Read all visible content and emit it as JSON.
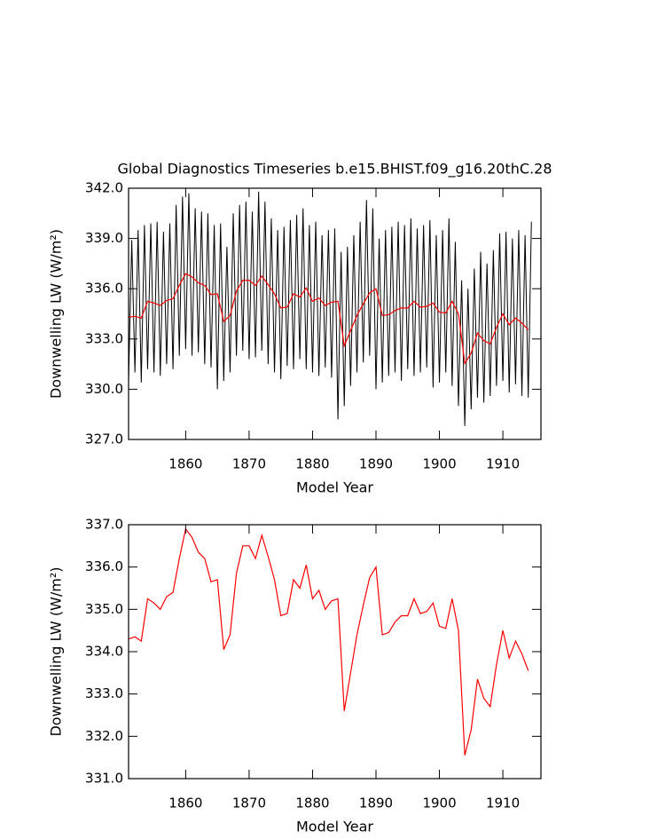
{
  "chart_data": [
    {
      "type": "line",
      "title": "Global Diagnostics Timeseries b.e15.BHIST.f09_g16.20thC.28",
      "xlabel": "Model Year",
      "ylabel": "Downwelling LW (W/m²)",
      "xlim": [
        1851,
        1916
      ],
      "xticks": [
        1860,
        1870,
        1880,
        1890,
        1900,
        1910
      ],
      "ylim": [
        327,
        342
      ],
      "yticks": [
        {
          "value": 327,
          "label": "327.0"
        },
        {
          "value": 330,
          "label": "330.0"
        },
        {
          "value": 333,
          "label": "333.0"
        },
        {
          "value": 336,
          "label": "336.0"
        },
        {
          "value": 339,
          "label": "339.0"
        },
        {
          "value": 342,
          "label": "342.0"
        }
      ],
      "series": [
        {
          "color": "#000000",
          "x": [
            1851,
            1851.5,
            1852,
            1852.5,
            1853,
            1853.5,
            1854,
            1854.5,
            1855,
            1855.5,
            1856,
            1856.5,
            1857,
            1857.5,
            1858,
            1858.5,
            1859,
            1859.5,
            1860,
            1860.5,
            1861,
            1861.5,
            1862,
            1862.5,
            1863,
            1863.5,
            1864,
            1864.5,
            1865,
            1865.5,
            1866,
            1866.5,
            1867,
            1867.5,
            1868,
            1868.5,
            1869,
            1869.5,
            1870,
            1870.5,
            1871,
            1871.5,
            1872,
            1872.5,
            1873,
            1873.5,
            1874,
            1874.5,
            1875,
            1875.5,
            1876,
            1876.5,
            1877,
            1877.5,
            1878,
            1878.5,
            1879,
            1879.5,
            1880,
            1880.5,
            1881,
            1881.5,
            1882,
            1882.5,
            1883,
            1883.5,
            1884,
            1884.5,
            1885,
            1885.5,
            1886,
            1886.5,
            1887,
            1887.5,
            1888,
            1888.5,
            1889,
            1889.5,
            1890,
            1890.5,
            1891,
            1891.5,
            1892,
            1892.5,
            1893,
            1893.5,
            1894,
            1894.5,
            1895,
            1895.5,
            1896,
            1896.5,
            1897,
            1897.5,
            1898,
            1898.5,
            1899,
            1899.5,
            1900,
            1900.5,
            1901,
            1901.5,
            1902,
            1902.5,
            1903,
            1903.5,
            1904,
            1904.5,
            1905,
            1905.5,
            1906,
            1906.5,
            1907,
            1907.5,
            1908,
            1908.5,
            1909,
            1909.5,
            1910,
            1910.5,
            1911,
            1911.5,
            1912,
            1912.5,
            1913,
            1913.5,
            1914,
            1914.5
          ],
          "values": [
            330.5,
            338.9,
            331.0,
            339.5,
            330.4,
            339.8,
            331.2,
            339.9,
            331.0,
            340.0,
            330.8,
            339.4,
            331.5,
            339.9,
            331.2,
            341.0,
            332.0,
            341.5,
            332.4,
            341.7,
            332.0,
            340.8,
            332.2,
            340.6,
            331.5,
            340.5,
            331.3,
            339.8,
            330.0,
            339.9,
            330.5,
            338.5,
            331.0,
            340.5,
            332.0,
            341.0,
            332.3,
            341.2,
            331.8,
            340.6,
            331.9,
            341.8,
            332.3,
            341.2,
            331.5,
            340.2,
            331.0,
            339.5,
            330.6,
            339.7,
            331.4,
            340.1,
            331.2,
            340.4,
            331.8,
            340.8,
            331.2,
            339.8,
            331.0,
            340.0,
            330.8,
            339.2,
            331.3,
            339.5,
            330.7,
            339.6,
            328.2,
            338.2,
            329.0,
            338.5,
            330.2,
            339.2,
            331.0,
            340.0,
            331.6,
            341.3,
            332.0,
            340.8,
            330.0,
            339.0,
            330.4,
            339.5,
            330.8,
            339.7,
            331.0,
            340.0,
            330.5,
            339.8,
            331.2,
            340.2,
            330.8,
            339.6,
            331.0,
            339.8,
            331.3,
            340.1,
            330.1,
            339.2,
            330.4,
            339.5,
            331.0,
            340.2,
            330.2,
            338.8,
            329.0,
            336.5,
            327.8,
            336.0,
            328.8,
            337.2,
            329.5,
            338.2,
            329.2,
            337.5,
            329.6,
            338.3,
            330.2,
            339.3,
            330.5,
            339.4,
            329.8,
            339.0,
            330.3,
            339.5,
            329.6,
            339.2,
            329.5,
            340.0
          ]
        },
        {
          "color": "#ff0000",
          "x": [
            1851,
            1852,
            1853,
            1854,
            1855,
            1856,
            1857,
            1858,
            1859,
            1860,
            1861,
            1862,
            1863,
            1864,
            1865,
            1866,
            1867,
            1868,
            1869,
            1870,
            1871,
            1872,
            1873,
            1874,
            1875,
            1876,
            1877,
            1878,
            1879,
            1880,
            1881,
            1882,
            1883,
            1884,
            1885,
            1886,
            1887,
            1888,
            1889,
            1890,
            1891,
            1892,
            1893,
            1894,
            1895,
            1896,
            1897,
            1898,
            1899,
            1900,
            1901,
            1902,
            1903,
            1904,
            1905,
            1906,
            1907,
            1908,
            1909,
            1910,
            1911,
            1912,
            1913,
            1914
          ],
          "values": [
            334.3,
            334.35,
            334.25,
            335.25,
            335.15,
            335.0,
            335.3,
            335.4,
            336.2,
            336.9,
            336.7,
            336.35,
            336.2,
            335.65,
            335.7,
            334.05,
            334.4,
            335.85,
            336.5,
            336.5,
            336.2,
            336.75,
            336.25,
            335.7,
            334.85,
            334.9,
            335.7,
            335.5,
            336.05,
            335.25,
            335.45,
            335.0,
            335.2,
            335.25,
            332.6,
            333.5,
            334.4,
            335.1,
            335.75,
            336.0,
            334.4,
            334.45,
            334.7,
            334.85,
            334.85,
            335.25,
            334.9,
            334.95,
            335.15,
            334.6,
            334.55,
            335.25,
            334.5,
            331.55,
            332.15,
            333.35,
            332.9,
            332.7,
            333.7,
            334.5,
            333.85,
            334.25,
            333.95,
            333.55
          ]
        }
      ]
    },
    {
      "type": "line",
      "xlabel": "Model Year",
      "ylabel": "Downwelling LW (W/m²)",
      "xlim": [
        1851,
        1916
      ],
      "xticks": [
        1860,
        1870,
        1880,
        1890,
        1900,
        1910
      ],
      "ylim": [
        331,
        337
      ],
      "yticks": [
        {
          "value": 331,
          "label": "331.0"
        },
        {
          "value": 332,
          "label": "332.0"
        },
        {
          "value": 333,
          "label": "333.0"
        },
        {
          "value": 334,
          "label": "334.0"
        },
        {
          "value": 335,
          "label": "335.0"
        },
        {
          "value": 336,
          "label": "336.0"
        },
        {
          "value": 337,
          "label": "337.0"
        }
      ],
      "series": [
        {
          "color": "#ff0000",
          "x": [
            1851,
            1852,
            1853,
            1854,
            1855,
            1856,
            1857,
            1858,
            1859,
            1860,
            1861,
            1862,
            1863,
            1864,
            1865,
            1866,
            1867,
            1868,
            1869,
            1870,
            1871,
            1872,
            1873,
            1874,
            1875,
            1876,
            1877,
            1878,
            1879,
            1880,
            1881,
            1882,
            1883,
            1884,
            1885,
            1886,
            1887,
            1888,
            1889,
            1890,
            1891,
            1892,
            1893,
            1894,
            1895,
            1896,
            1897,
            1898,
            1899,
            1900,
            1901,
            1902,
            1903,
            1904,
            1905,
            1906,
            1907,
            1908,
            1909,
            1910,
            1911,
            1912,
            1913,
            1914
          ],
          "values": [
            334.3,
            334.35,
            334.25,
            335.25,
            335.15,
            335.0,
            335.3,
            335.4,
            336.2,
            336.9,
            336.7,
            336.35,
            336.2,
            335.65,
            335.7,
            334.05,
            334.4,
            335.85,
            336.5,
            336.5,
            336.2,
            336.75,
            336.25,
            335.7,
            334.85,
            334.9,
            335.7,
            335.5,
            336.05,
            335.25,
            335.45,
            335.0,
            335.2,
            335.25,
            332.6,
            333.5,
            334.4,
            335.1,
            335.75,
            336.0,
            334.4,
            334.45,
            334.7,
            334.85,
            334.85,
            335.25,
            334.9,
            334.95,
            335.15,
            334.6,
            334.55,
            335.25,
            334.5,
            331.55,
            332.15,
            333.35,
            332.9,
            332.7,
            333.7,
            334.5,
            333.85,
            334.25,
            333.95,
            333.55
          ]
        }
      ]
    }
  ]
}
